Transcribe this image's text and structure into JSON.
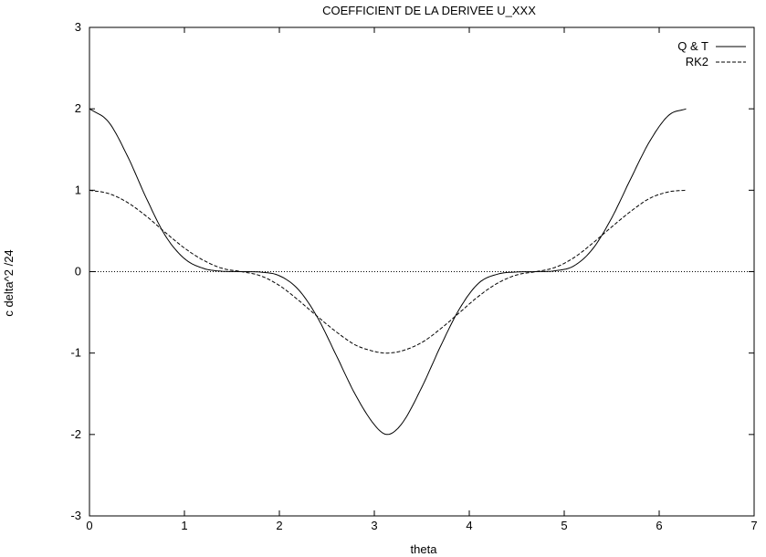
{
  "chart_data": {
    "type": "line",
    "title": "COEFFICIENT DE LA DERIVEE U_XXX",
    "xlabel": "theta",
    "ylabel": "c delta^2 /24",
    "xlim": [
      0,
      7
    ],
    "ylim": [
      -3,
      3
    ],
    "x_ticks": [
      "0",
      "1",
      "2",
      "3",
      "4",
      "5",
      "6",
      "7"
    ],
    "y_ticks": [
      "-3",
      "-2",
      "-1",
      "0",
      "1",
      "2",
      "3"
    ],
    "grid": false,
    "legend_position": "top-right",
    "zero_line": true,
    "series": [
      {
        "name": "Q & T",
        "style": "solid",
        "x": [
          0,
          0.2,
          0.4,
          0.6,
          0.8,
          1.0,
          1.2,
          1.4,
          1.6,
          1.8,
          2.0,
          2.2,
          2.4,
          2.6,
          2.8,
          3.0,
          3.1416,
          3.3,
          3.5,
          3.7,
          3.9,
          4.1,
          4.3,
          4.5,
          4.7,
          4.9,
          5.1,
          5.3,
          5.5,
          5.7,
          5.9,
          6.1,
          6.2832
        ],
        "y": [
          2.0,
          1.84,
          1.42,
          0.9,
          0.44,
          0.16,
          0.04,
          0.005,
          0.0,
          -0.006,
          -0.05,
          -0.22,
          -0.56,
          -1.03,
          -1.51,
          -1.88,
          -2.0,
          -1.85,
          -1.42,
          -0.91,
          -0.45,
          -0.14,
          -0.03,
          -0.004,
          0.0,
          0.01,
          0.07,
          0.28,
          0.66,
          1.14,
          1.6,
          1.92,
          2.0
        ]
      },
      {
        "name": "RK2",
        "style": "dashed",
        "x": [
          0,
          0.2,
          0.4,
          0.6,
          0.8,
          1.0,
          1.2,
          1.4,
          1.6,
          1.8,
          2.0,
          2.2,
          2.4,
          2.6,
          2.8,
          3.0,
          3.1416,
          3.3,
          3.5,
          3.7,
          3.9,
          4.1,
          4.3,
          4.5,
          4.7,
          4.9,
          5.1,
          5.3,
          5.5,
          5.7,
          5.9,
          6.1,
          6.2832
        ],
        "y": [
          1.0,
          0.96,
          0.85,
          0.68,
          0.48,
          0.29,
          0.14,
          0.04,
          0.0,
          -0.05,
          -0.17,
          -0.35,
          -0.55,
          -0.74,
          -0.9,
          -0.98,
          -1.0,
          -0.97,
          -0.87,
          -0.7,
          -0.5,
          -0.3,
          -0.14,
          -0.04,
          0.0,
          0.05,
          0.17,
          0.35,
          0.55,
          0.74,
          0.9,
          0.98,
          1.0
        ]
      }
    ]
  }
}
